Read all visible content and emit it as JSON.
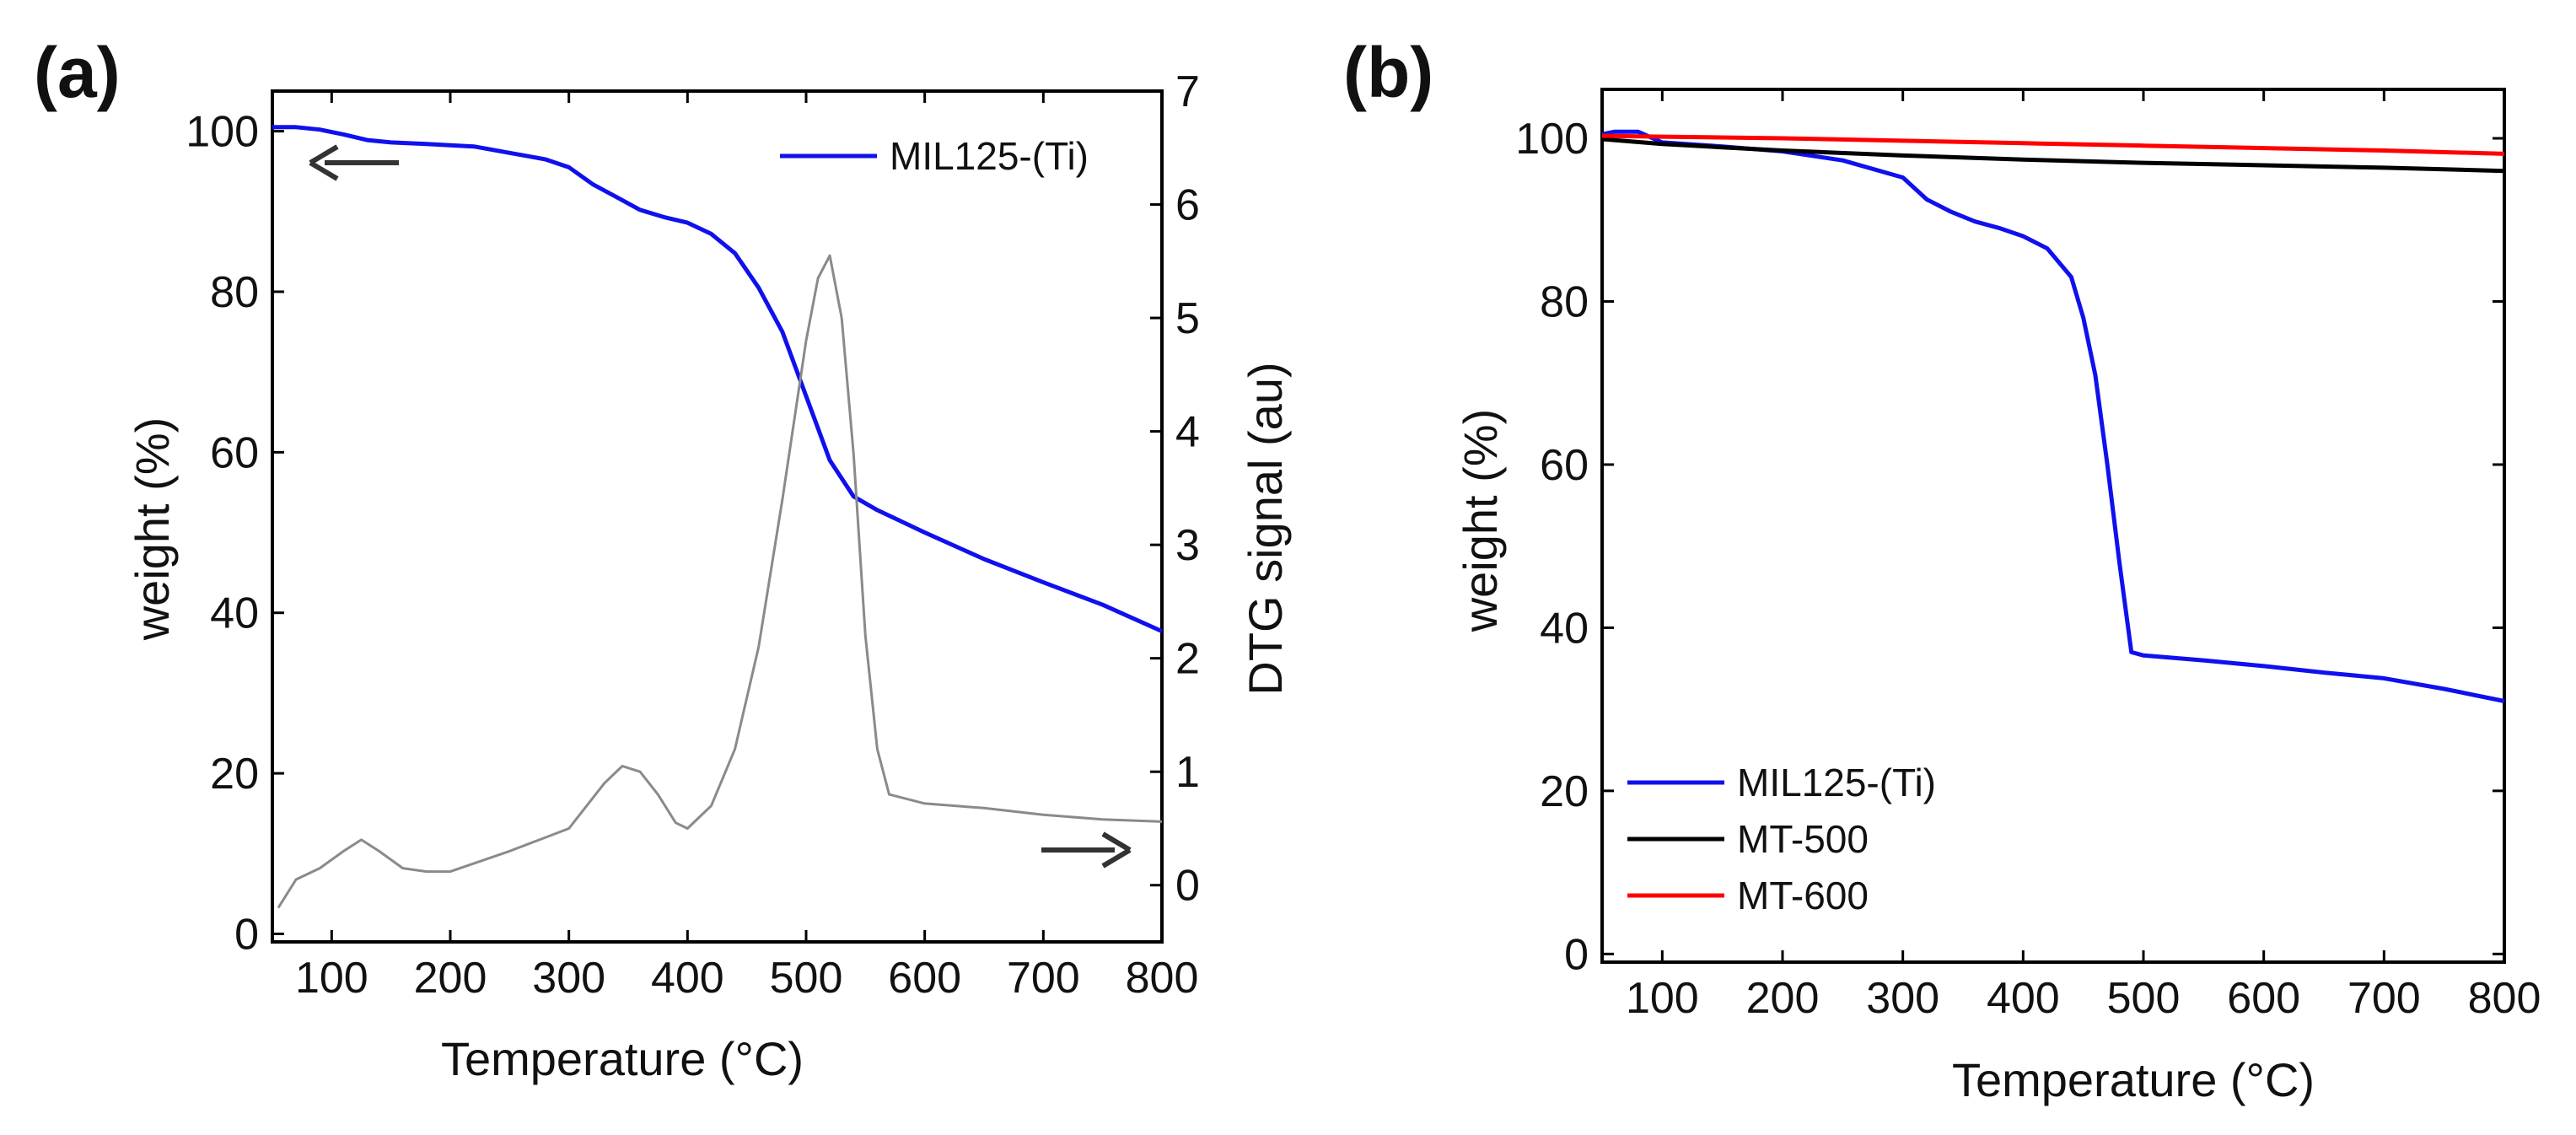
{
  "chart_data": [
    {
      "panel": "(a)",
      "type": "line",
      "xlabel": "Temperature (°C)",
      "ylabel": "weight (%)",
      "y2label": "DTG signal (au)",
      "xlim": [
        50,
        800
      ],
      "ylim": [
        -1,
        105
      ],
      "y2lim": [
        -0.5,
        7
      ],
      "xticks": [
        100,
        200,
        300,
        400,
        500,
        600,
        700,
        800
      ],
      "yticks": [
        0,
        20,
        40,
        60,
        80,
        100
      ],
      "y2ticks": [
        0,
        1,
        2,
        3,
        4,
        5,
        6,
        7
      ],
      "legend": "top-right",
      "series": [
        {
          "name": "MIL125-(Ti)",
          "axis": "left",
          "color": "#1010ee",
          "in_legend": true,
          "x": [
            50,
            70,
            90,
            110,
            130,
            150,
            180,
            220,
            250,
            280,
            300,
            320,
            340,
            360,
            380,
            400,
            420,
            440,
            460,
            480,
            500,
            520,
            540,
            560,
            600,
            650,
            700,
            750,
            800
          ],
          "y": [
            100.5,
            100.5,
            100.2,
            99.6,
            98.9,
            98.6,
            98.4,
            98.1,
            97.3,
            96.5,
            95.5,
            93.4,
            91.8,
            90.2,
            89.3,
            88.6,
            87.2,
            84.8,
            80.5,
            75.0,
            67.0,
            59.0,
            54.5,
            52.8,
            50.0,
            46.7,
            43.8,
            41.0,
            37.7
          ]
        },
        {
          "name": "DTG",
          "axis": "right",
          "color": "#8a8a8a",
          "in_legend": false,
          "x": [
            55,
            70,
            90,
            110,
            125,
            140,
            160,
            180,
            200,
            250,
            300,
            315,
            330,
            345,
            360,
            375,
            390,
            400,
            420,
            440,
            460,
            480,
            500,
            510,
            520,
            530,
            540,
            550,
            560,
            570,
            600,
            650,
            700,
            750,
            800
          ],
          "y": [
            -0.2,
            0.05,
            0.15,
            0.3,
            0.4,
            0.3,
            0.15,
            0.12,
            0.12,
            0.3,
            0.5,
            0.7,
            0.9,
            1.05,
            1.0,
            0.8,
            0.55,
            0.5,
            0.7,
            1.2,
            2.1,
            3.4,
            4.8,
            5.35,
            5.55,
            5.0,
            3.8,
            2.2,
            1.2,
            0.8,
            0.72,
            0.68,
            0.62,
            0.58,
            0.56
          ]
        }
      ],
      "annotations": [
        "arrow-left: weight axis",
        "arrow-right: DTG axis"
      ]
    },
    {
      "panel": "(b)",
      "type": "line",
      "xlabel": "Temperature (°C)",
      "ylabel": "weight (%)",
      "xlim": [
        50,
        800
      ],
      "ylim": [
        -1,
        106
      ],
      "xticks": [
        100,
        200,
        300,
        400,
        500,
        600,
        700,
        800
      ],
      "yticks": [
        0,
        20,
        40,
        60,
        80,
        100
      ],
      "legend": "bottom-left",
      "series": [
        {
          "name": "MIL125-(Ti)",
          "color": "#1010ee",
          "x": [
            50,
            60,
            80,
            100,
            150,
            200,
            250,
            300,
            320,
            340,
            360,
            380,
            400,
            420,
            440,
            450,
            460,
            470,
            480,
            490,
            500,
            550,
            600,
            650,
            700,
            750,
            800
          ],
          "y": [
            100.5,
            100.8,
            100.8,
            99.5,
            99.0,
            98.4,
            97.3,
            95.2,
            92.5,
            91.0,
            89.8,
            89.0,
            88.0,
            86.5,
            83.0,
            78.0,
            71.0,
            60.0,
            48.0,
            37.0,
            36.6,
            36.0,
            35.3,
            34.5,
            33.8,
            32.5,
            31.0
          ]
        },
        {
          "name": "MT-500",
          "color": "#000000",
          "x": [
            50,
            100,
            150,
            200,
            300,
            400,
            500,
            600,
            700,
            800
          ],
          "y": [
            99.9,
            99.3,
            98.9,
            98.5,
            97.9,
            97.4,
            97.0,
            96.7,
            96.4,
            96.0
          ]
        },
        {
          "name": "MT-600",
          "color": "#ff0000",
          "x": [
            50,
            100,
            200,
            300,
            400,
            500,
            600,
            700,
            800
          ],
          "y": [
            100.3,
            100.2,
            100.0,
            99.7,
            99.4,
            99.1,
            98.8,
            98.5,
            98.1
          ]
        }
      ]
    }
  ]
}
